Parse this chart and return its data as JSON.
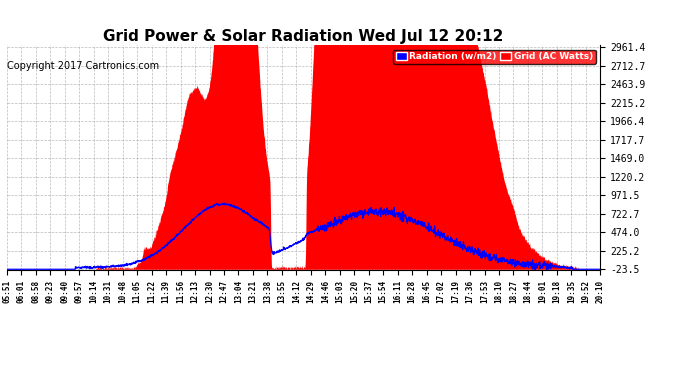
{
  "title": "Grid Power & Solar Radiation Wed Jul 12 20:12",
  "copyright": "Copyright 2017 Cartronics.com",
  "yticks": [
    -23.5,
    225.2,
    474.0,
    722.7,
    971.5,
    1220.2,
    1469.0,
    1717.7,
    1966.4,
    2215.2,
    2463.9,
    2712.7,
    2961.4
  ],
  "ymin": -23.5,
  "ymax": 2961.4,
  "background_color": "#ffffff",
  "plot_bg_color": "#ffffff",
  "grid_color": "#aaaaaa",
  "red_fill_color": "#ff0000",
  "blue_line_color": "#0000ff",
  "legend_radiation_label": "Radiation (w/m2)",
  "legend_grid_label": "Grid (AC Watts)",
  "title_fontsize": 11,
  "copyright_fontsize": 7,
  "xtick_labels": [
    "05:51",
    "06:01",
    "08:58",
    "09:23",
    "09:40",
    "09:57",
    "10:14",
    "10:31",
    "10:48",
    "11:05",
    "11:22",
    "11:39",
    "11:56",
    "12:13",
    "12:30",
    "12:47",
    "13:04",
    "13:21",
    "13:38",
    "13:55",
    "14:12",
    "14:29",
    "14:46",
    "15:03",
    "15:20",
    "15:37",
    "15:54",
    "16:11",
    "16:28",
    "16:45",
    "17:02",
    "17:19",
    "17:36",
    "17:53",
    "18:10",
    "18:27",
    "18:44",
    "19:01",
    "19:18",
    "19:35",
    "19:52",
    "20:10"
  ]
}
